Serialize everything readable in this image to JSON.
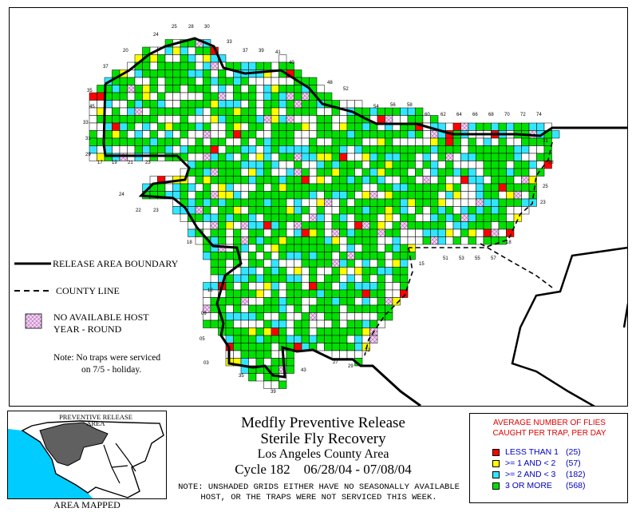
{
  "map": {
    "legend_boundary": "RELEASE AREA BOUNDARY",
    "legend_county": "COUNTY LINE",
    "legend_nohost_1": "NO AVAILABLE HOST",
    "legend_nohost_2": "YEAR - ROUND",
    "note_1": "Note: No traps were serviced",
    "note_2": "on 7/5 - holiday.",
    "grid_labels": [
      "24",
      "25",
      "28",
      "30",
      "20",
      "33",
      "37",
      "39",
      "41",
      "40",
      "37",
      "35",
      "45",
      "48",
      "52",
      "54",
      "56",
      "58",
      "60",
      "62",
      "64",
      "66",
      "68",
      "70",
      "72",
      "74",
      "33",
      "31",
      "31",
      "29",
      "17",
      "19",
      "21",
      "23",
      "28",
      "25",
      "24",
      "22",
      "23",
      "23",
      "18",
      "18",
      "51",
      "53",
      "55",
      "57",
      "15",
      "12",
      "09",
      "05",
      "03",
      "35",
      "39",
      "43",
      "27",
      "29",
      "32"
    ]
  },
  "inset": {
    "title_1": "PREVENTIVE RELEASE",
    "title_2": "AREA",
    "caption": "AREA MAPPED"
  },
  "title": {
    "line1": "Medfly Preventive Release",
    "line2": "Sterile Fly Recovery",
    "line3": "Los Angeles County Area",
    "line4": "Cycle 182    06/28/04 - 07/08/04"
  },
  "note": {
    "line1": "NOTE: UNSHADED GRIDS EITHER HAVE NO SEASONALLY AVAILABLE",
    "line2": "HOST, OR THE TRAPS WERE NOT SERVICED THIS WEEK."
  },
  "legend": {
    "title_1": "AVERAGE NUMBER OF FLIES",
    "title_2": "CAUGHT PER TRAP, PER DAY",
    "items": [
      {
        "label": "LESS THAN 1",
        "count": "(25)",
        "color": "#ff0000"
      },
      {
        "label": ">= 1 AND < 2",
        "count": "(57)",
        "color": "#ffff00"
      },
      {
        "label": ">= 2 AND < 3",
        "count": "(182)",
        "color": "#33e6ff"
      },
      {
        "label": "3 OR MORE",
        "count": "(568)",
        "color": "#00e000"
      }
    ]
  },
  "colors": {
    "red": "#ff0000",
    "yellow": "#ffff00",
    "cyan": "#33e6ff",
    "green": "#00e000",
    "nohost": "#f3d7f3",
    "inset_area": "#606060",
    "inset_water": "#00ccff"
  }
}
